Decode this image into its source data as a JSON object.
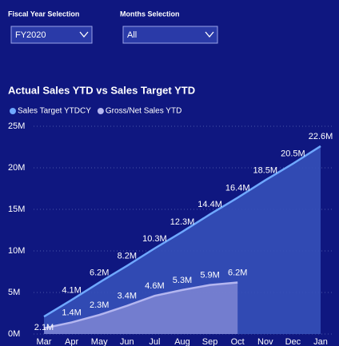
{
  "slicers": [
    {
      "label": "Fiscal Year Selection",
      "selected": "FY2020"
    },
    {
      "label": "Months Selection",
      "selected": "All"
    }
  ],
  "chart_data": {
    "type": "area",
    "title": "Actual Sales YTD vs Sales Target YTD",
    "categories": [
      "Mar",
      "Apr",
      "May",
      "Jun",
      "Jul",
      "Aug",
      "Sep",
      "Oct",
      "Nov",
      "Dec",
      "Jan"
    ],
    "series": [
      {
        "name": "Sales Target YTDCY",
        "color": "#6fa8ff",
        "fill": "#3550b8",
        "values": [
          2.1,
          4.1,
          6.2,
          8.2,
          10.3,
          12.3,
          14.4,
          16.4,
          18.5,
          20.5,
          22.6
        ],
        "value_labels": [
          "2.1M",
          "4.1M",
          "6.2M",
          "8.2M",
          "10.3M",
          "12.3M",
          "14.4M",
          "16.4M",
          "18.5M",
          "20.5M",
          "22.6M"
        ]
      },
      {
        "name": "Gross/Net Sales YTD",
        "color": "#b4b6f0",
        "fill": "#7f86d4",
        "values": [
          0.7,
          1.4,
          2.3,
          3.4,
          4.6,
          5.3,
          5.9,
          6.2,
          null,
          null,
          null
        ],
        "value_labels": [
          null,
          "1.4M",
          "2.3M",
          "3.4M",
          "4.6M",
          "5.3M",
          "5.9M",
          "6.2M",
          null,
          null,
          null
        ]
      }
    ],
    "ylim": [
      0,
      25
    ],
    "yticks": [
      {
        "value": 0,
        "label": "0M"
      },
      {
        "value": 5,
        "label": "5M"
      },
      {
        "value": 10,
        "label": "10M"
      },
      {
        "value": 15,
        "label": "15M"
      },
      {
        "value": 20,
        "label": "20M"
      },
      {
        "value": 25,
        "label": "25M"
      }
    ],
    "grid": true
  }
}
